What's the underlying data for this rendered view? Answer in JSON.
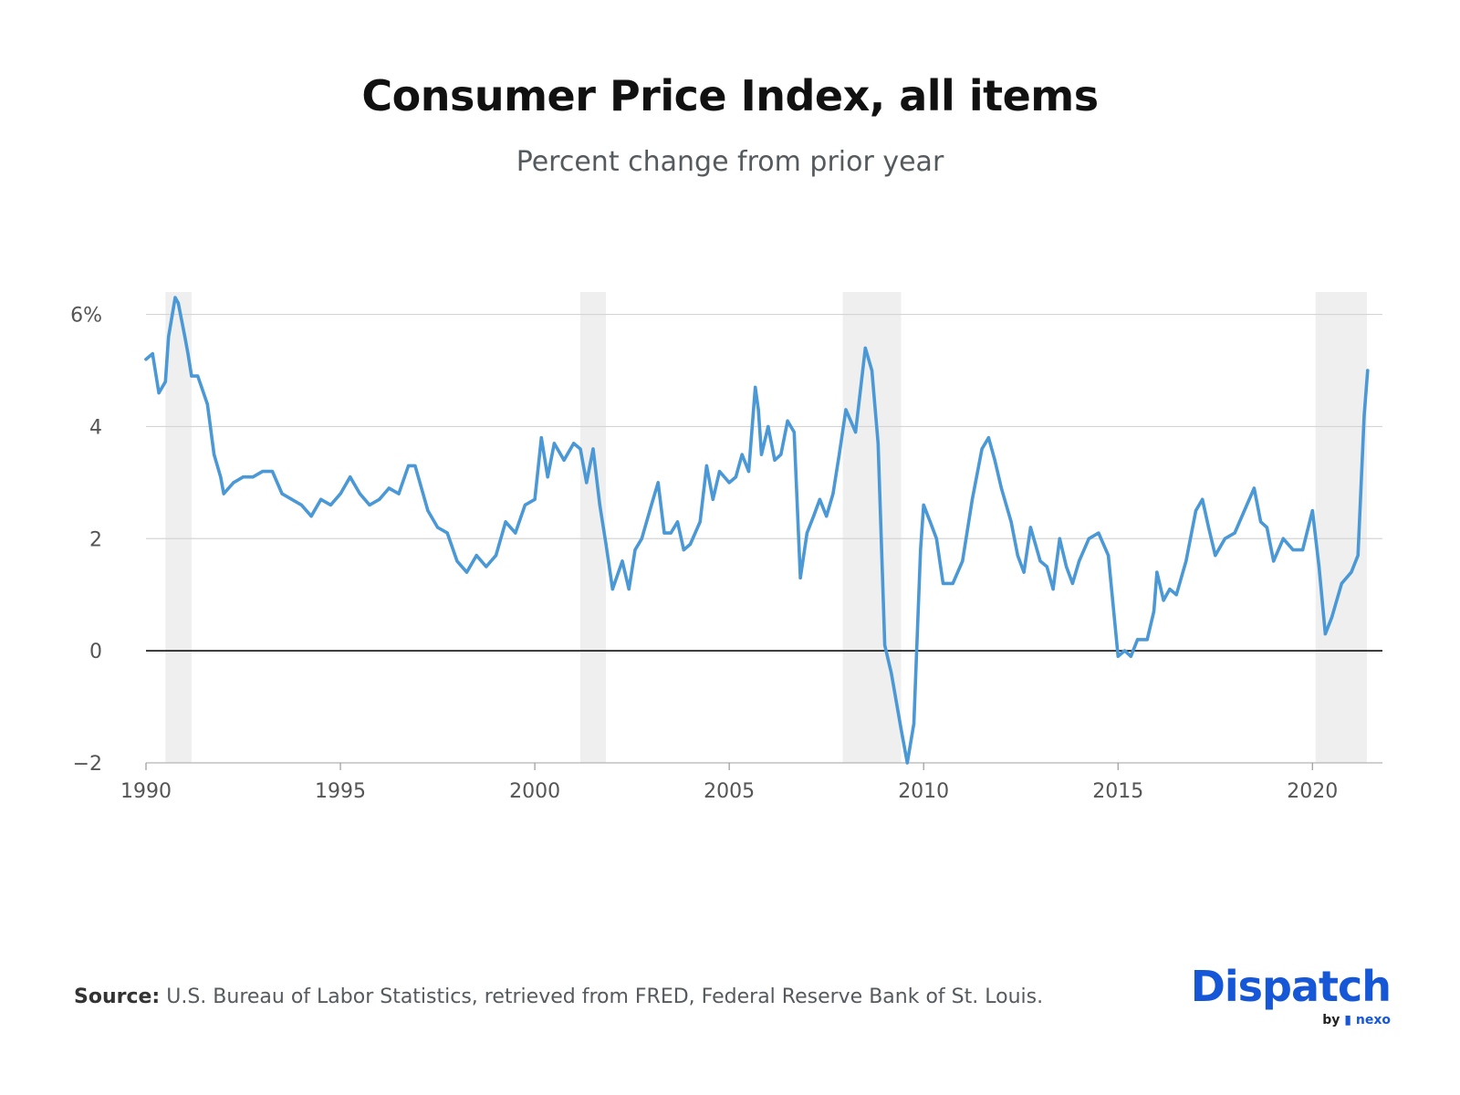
{
  "header": {
    "title": "Consumer Price Index, all items",
    "subtitle": "Percent change from prior year"
  },
  "footer": {
    "source_label": "Source:",
    "source_text": "U.S. Bureau of Labor Statistics, retrieved from FRED, Federal Reserve Bank of St. Louis."
  },
  "brand": {
    "name": "Dispatch",
    "by": "by",
    "partner": "nexo",
    "color": "#1557d6"
  },
  "chart_data": {
    "type": "line",
    "title": "Consumer Price Index, all items",
    "subtitle": "Percent change from prior year",
    "xlabel": "",
    "ylabel": "",
    "xlim": [
      1990,
      2021.8
    ],
    "ylim": [
      -2,
      6.4
    ],
    "x_ticks": [
      1990,
      1995,
      2000,
      2005,
      2010,
      2015,
      2020
    ],
    "x_tick_labels": [
      "1990",
      "1995",
      "2000",
      "2005",
      "2010",
      "2015",
      "2020"
    ],
    "y_ticks": [
      -2,
      0,
      2,
      4,
      6
    ],
    "y_tick_labels": [
      "−2",
      "0",
      "2",
      "4",
      "6%"
    ],
    "grid": true,
    "line_color": "#4a98d6",
    "recession_shading": [
      [
        1990.5,
        1991.17
      ],
      [
        2001.17,
        2001.83
      ],
      [
        2007.92,
        2009.42
      ],
      [
        2020.08,
        2021.4
      ]
    ],
    "series": [
      {
        "values": [
          [
            1990.0,
            5.2
          ],
          [
            1990.17,
            5.3
          ],
          [
            1990.33,
            4.6
          ],
          [
            1990.5,
            4.8
          ],
          [
            1990.58,
            5.6
          ],
          [
            1990.75,
            6.3
          ],
          [
            1990.83,
            6.2
          ],
          [
            1991.0,
            5.6
          ],
          [
            1991.08,
            5.3
          ],
          [
            1991.17,
            4.9
          ],
          [
            1991.33,
            4.9
          ],
          [
            1991.58,
            4.4
          ],
          [
            1991.75,
            3.5
          ],
          [
            1991.92,
            3.1
          ],
          [
            1992.0,
            2.8
          ],
          [
            1992.25,
            3.0
          ],
          [
            1992.5,
            3.1
          ],
          [
            1992.75,
            3.1
          ],
          [
            1993.0,
            3.2
          ],
          [
            1993.25,
            3.2
          ],
          [
            1993.5,
            2.8
          ],
          [
            1993.75,
            2.7
          ],
          [
            1994.0,
            2.6
          ],
          [
            1994.25,
            2.4
          ],
          [
            1994.5,
            2.7
          ],
          [
            1994.75,
            2.6
          ],
          [
            1995.0,
            2.8
          ],
          [
            1995.25,
            3.1
          ],
          [
            1995.5,
            2.8
          ],
          [
            1995.75,
            2.6
          ],
          [
            1996.0,
            2.7
          ],
          [
            1996.25,
            2.9
          ],
          [
            1996.5,
            2.8
          ],
          [
            1996.75,
            3.3
          ],
          [
            1996.92,
            3.3
          ],
          [
            1997.25,
            2.5
          ],
          [
            1997.5,
            2.2
          ],
          [
            1997.75,
            2.1
          ],
          [
            1998.0,
            1.6
          ],
          [
            1998.25,
            1.4
          ],
          [
            1998.5,
            1.7
          ],
          [
            1998.75,
            1.5
          ],
          [
            1999.0,
            1.7
          ],
          [
            1999.25,
            2.3
          ],
          [
            1999.5,
            2.1
          ],
          [
            1999.75,
            2.6
          ],
          [
            2000.0,
            2.7
          ],
          [
            2000.17,
            3.8
          ],
          [
            2000.33,
            3.1
          ],
          [
            2000.5,
            3.7
          ],
          [
            2000.75,
            3.4
          ],
          [
            2001.0,
            3.7
          ],
          [
            2001.17,
            3.6
          ],
          [
            2001.33,
            3.0
          ],
          [
            2001.5,
            3.6
          ],
          [
            2001.67,
            2.6
          ],
          [
            2001.83,
            1.9
          ],
          [
            2002.0,
            1.1
          ],
          [
            2002.25,
            1.6
          ],
          [
            2002.42,
            1.1
          ],
          [
            2002.58,
            1.8
          ],
          [
            2002.75,
            2.0
          ],
          [
            2003.0,
            2.6
          ],
          [
            2003.17,
            3.0
          ],
          [
            2003.33,
            2.1
          ],
          [
            2003.5,
            2.1
          ],
          [
            2003.67,
            2.3
          ],
          [
            2003.83,
            1.8
          ],
          [
            2004.0,
            1.9
          ],
          [
            2004.25,
            2.3
          ],
          [
            2004.42,
            3.3
          ],
          [
            2004.58,
            2.7
          ],
          [
            2004.75,
            3.2
          ],
          [
            2005.0,
            3.0
          ],
          [
            2005.17,
            3.1
          ],
          [
            2005.33,
            3.5
          ],
          [
            2005.5,
            3.2
          ],
          [
            2005.67,
            4.7
          ],
          [
            2005.75,
            4.3
          ],
          [
            2005.83,
            3.5
          ],
          [
            2006.0,
            4.0
          ],
          [
            2006.17,
            3.4
          ],
          [
            2006.33,
            3.5
          ],
          [
            2006.5,
            4.1
          ],
          [
            2006.67,
            3.9
          ],
          [
            2006.83,
            1.3
          ],
          [
            2007.0,
            2.1
          ],
          [
            2007.17,
            2.4
          ],
          [
            2007.33,
            2.7
          ],
          [
            2007.5,
            2.4
          ],
          [
            2007.67,
            2.8
          ],
          [
            2007.83,
            3.5
          ],
          [
            2008.0,
            4.3
          ],
          [
            2008.25,
            3.9
          ],
          [
            2008.5,
            5.4
          ],
          [
            2008.67,
            5.0
          ],
          [
            2008.83,
            3.7
          ],
          [
            2009.0,
            0.1
          ],
          [
            2009.17,
            -0.4
          ],
          [
            2009.42,
            -1.4
          ],
          [
            2009.58,
            -2.0
          ],
          [
            2009.75,
            -1.3
          ],
          [
            2009.92,
            1.8
          ],
          [
            2010.0,
            2.6
          ],
          [
            2010.17,
            2.3
          ],
          [
            2010.33,
            2.0
          ],
          [
            2010.5,
            1.2
          ],
          [
            2010.75,
            1.2
          ],
          [
            2011.0,
            1.6
          ],
          [
            2011.25,
            2.7
          ],
          [
            2011.5,
            3.6
          ],
          [
            2011.67,
            3.8
          ],
          [
            2011.83,
            3.4
          ],
          [
            2012.0,
            2.9
          ],
          [
            2012.25,
            2.3
          ],
          [
            2012.42,
            1.7
          ],
          [
            2012.58,
            1.4
          ],
          [
            2012.75,
            2.2
          ],
          [
            2013.0,
            1.6
          ],
          [
            2013.17,
            1.5
          ],
          [
            2013.33,
            1.1
          ],
          [
            2013.5,
            2.0
          ],
          [
            2013.67,
            1.5
          ],
          [
            2013.83,
            1.2
          ],
          [
            2014.0,
            1.6
          ],
          [
            2014.25,
            2.0
          ],
          [
            2014.5,
            2.1
          ],
          [
            2014.75,
            1.7
          ],
          [
            2015.0,
            -0.1
          ],
          [
            2015.17,
            0.0
          ],
          [
            2015.33,
            -0.1
          ],
          [
            2015.5,
            0.2
          ],
          [
            2015.75,
            0.2
          ],
          [
            2015.92,
            0.7
          ],
          [
            2016.0,
            1.4
          ],
          [
            2016.17,
            0.9
          ],
          [
            2016.33,
            1.1
          ],
          [
            2016.5,
            1.0
          ],
          [
            2016.75,
            1.6
          ],
          [
            2017.0,
            2.5
          ],
          [
            2017.17,
            2.7
          ],
          [
            2017.33,
            2.2
          ],
          [
            2017.5,
            1.7
          ],
          [
            2017.75,
            2.0
          ],
          [
            2018.0,
            2.1
          ],
          [
            2018.25,
            2.5
          ],
          [
            2018.5,
            2.9
          ],
          [
            2018.67,
            2.3
          ],
          [
            2018.83,
            2.2
          ],
          [
            2019.0,
            1.6
          ],
          [
            2019.25,
            2.0
          ],
          [
            2019.5,
            1.8
          ],
          [
            2019.75,
            1.8
          ],
          [
            2020.0,
            2.5
          ],
          [
            2020.17,
            1.5
          ],
          [
            2020.33,
            0.3
          ],
          [
            2020.5,
            0.6
          ],
          [
            2020.75,
            1.2
          ],
          [
            2021.0,
            1.4
          ],
          [
            2021.17,
            1.7
          ],
          [
            2021.33,
            4.2
          ],
          [
            2021.42,
            5.0
          ]
        ]
      }
    ]
  }
}
